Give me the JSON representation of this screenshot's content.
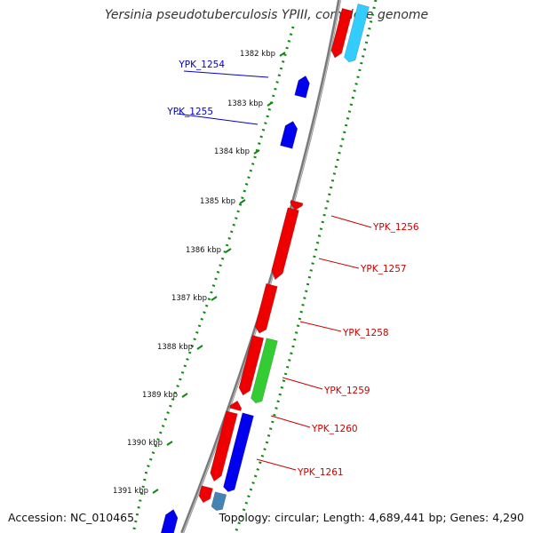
{
  "title": "Yersinia pseudotuberculosis YPIII, complete genome",
  "footer": {
    "accession": "Accession: NC_010465",
    "summary": "Topology: circular; Length: 4,689,441 bp; Genes: 4,290"
  },
  "colors": {
    "backbone": "#7a7a7a",
    "ticks": "#118811",
    "forward_label": "#0000cc",
    "reverse_label": "#cc0000"
  },
  "ticks": [
    {
      "label": "1382 kbp"
    },
    {
      "label": "1383 kbp"
    },
    {
      "label": "1384 kbp"
    },
    {
      "label": "1385 kbp"
    },
    {
      "label": "1386 kbp"
    },
    {
      "label": "1387 kbp"
    },
    {
      "label": "1388 kbp"
    },
    {
      "label": "1389 kbp"
    },
    {
      "label": "1390 kbp"
    },
    {
      "label": "1391 kbp"
    }
  ],
  "genes": [
    {
      "id": "YPK_1254",
      "strand": "+",
      "color": "#0000ee",
      "labeled": true
    },
    {
      "id": "YPK_1255",
      "strand": "+",
      "color": "#0000ee",
      "labeled": true
    },
    {
      "id": "YPK_1256",
      "strand": "-",
      "color": "#ee0000",
      "labeled": true
    },
    {
      "id": "YPK_1257",
      "strand": "-",
      "color": "#ee0000",
      "labeled": true
    },
    {
      "id": "YPK_1258",
      "strand": "-",
      "color": "#ee0000",
      "labeled": true
    },
    {
      "id": "YPK_1259",
      "strand": "-",
      "color": "#33cc33",
      "labeled": true
    },
    {
      "id": "YPK_1260",
      "strand": "-",
      "color": "#ee0000",
      "labeled": true
    },
    {
      "id": "YPK_1261",
      "strand": "-",
      "color": "#0000ee",
      "labeled": true
    }
  ]
}
